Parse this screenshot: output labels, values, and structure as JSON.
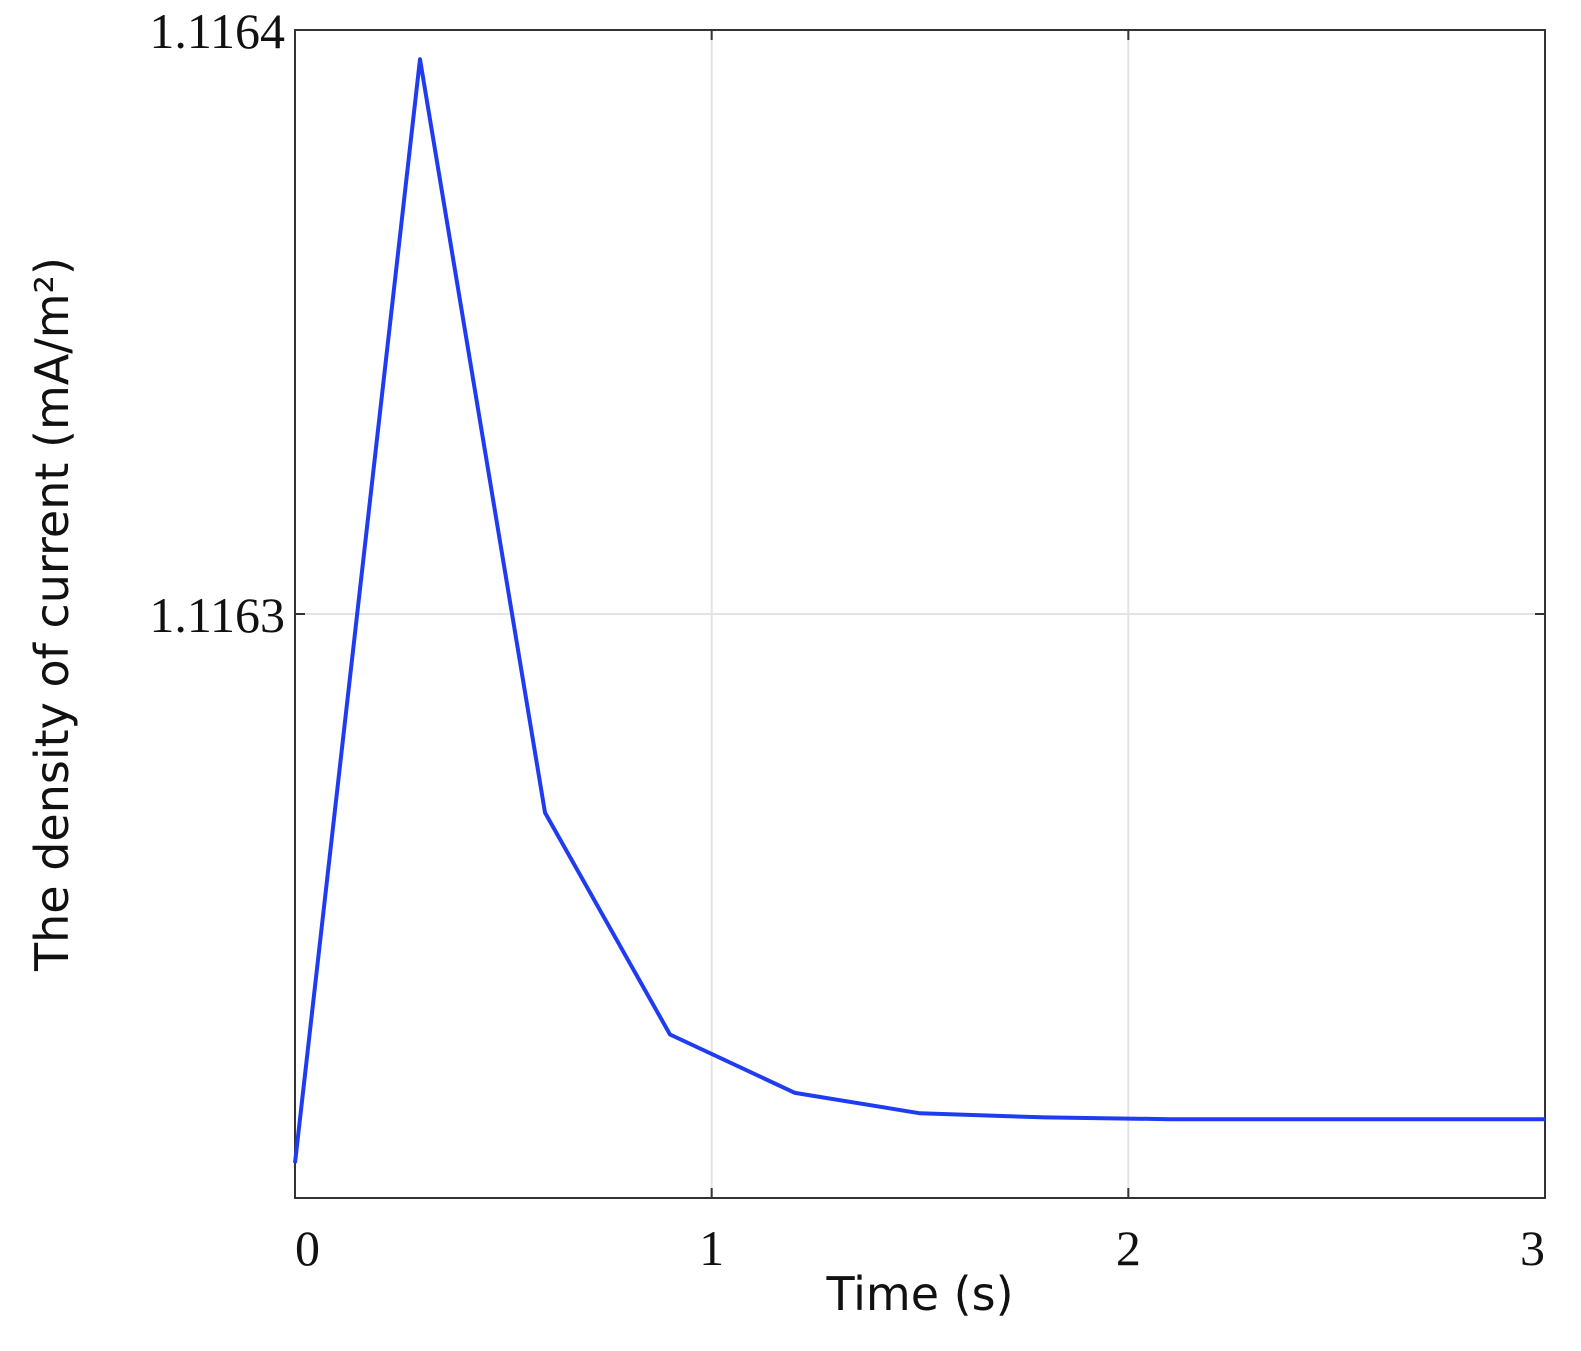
{
  "chart_data": {
    "type": "line",
    "xlabel": "Time (s)",
    "ylabel": "The density of current (mA/m²)",
    "x": [
      0,
      0.3,
      0.6,
      0.9,
      1.2,
      1.5,
      1.8,
      2.1,
      2.4,
      2.7,
      3.0
    ],
    "values": [
      1.116206,
      1.116395,
      1.116266,
      1.116228,
      1.116218,
      1.1162145,
      1.1162138,
      1.1162135,
      1.1162135,
      1.1162135,
      1.1162135
    ],
    "color": "#1f3cf2",
    "xlim": [
      0,
      3
    ],
    "ylim": [
      1.1162,
      1.1164
    ],
    "xticks": [
      0,
      1,
      2,
      3
    ],
    "yticks": [
      1.1163,
      1.1164
    ],
    "grid": true
  }
}
